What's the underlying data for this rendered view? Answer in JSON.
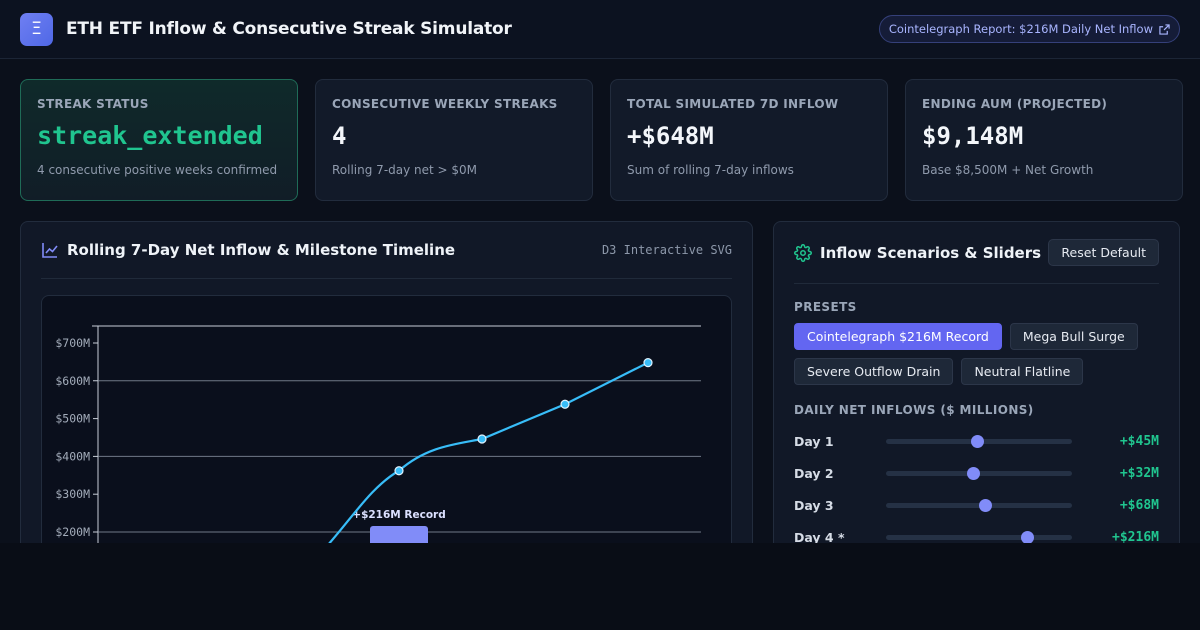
{
  "app": {
    "title": "ETH ETF Inflow & Consecutive Streak Simulator",
    "logo_glyph": "Ξ",
    "report_link": "Cointelegraph Report: $216M Daily Net Inflow",
    "report_icon": "external-link-icon"
  },
  "cards": [
    {
      "label": "STREAK STATUS",
      "value": "streak_extended",
      "sub": "4 consecutive positive weeks confirmed"
    },
    {
      "label": "CONSECUTIVE WEEKLY STREAKS",
      "value": "4",
      "sub": "Rolling 7-day net > $0M"
    },
    {
      "label": "TOTAL SIMULATED 7D INFLOW",
      "value": "+$648M",
      "sub": "Sum of rolling 7-day inflows"
    },
    {
      "label": "ENDING AUM (PROJECTED)",
      "value": "$9,148M",
      "sub": "Base $8,500M + Net Growth"
    }
  ],
  "chart_panel": {
    "title": "Rolling 7-Day Net Inflow & Milestone Timeline",
    "tag": "D3 Interactive SVG",
    "icon": "line-chart-icon"
  },
  "chart_data": {
    "type": "line",
    "y_ticks": [
      "$200M",
      "$300M",
      "$400M",
      "$500M",
      "$600M",
      "$700M"
    ],
    "ylim_visible": [
      200,
      750
    ],
    "series": [
      {
        "values": [
          362,
          446,
          538,
          648
        ]
      }
    ],
    "bar_annotation": {
      "label": "+$216M Record",
      "value": 216
    },
    "grid": true
  },
  "controls": {
    "title": "Inflow Scenarios & Sliders",
    "icon": "gear-icon",
    "reset_label": "Reset Default",
    "presets_label": "PRESETS",
    "presets": [
      "Cointelegraph $216M Record",
      "Mega Bull Surge",
      "Severe Outflow Drain",
      "Neutral Flatline"
    ],
    "active_preset": 0,
    "daily_label": "DAILY NET INFLOWS ($ MILLIONS)",
    "days": [
      {
        "label": "Day 1",
        "value": "+$45M",
        "level": 0.49
      },
      {
        "label": "Day 2",
        "value": "+$32M",
        "level": 0.47
      },
      {
        "label": "Day 3",
        "value": "+$68M",
        "level": 0.53
      },
      {
        "label": "Day 4 *",
        "value": "+$216M",
        "level": 0.76
      }
    ]
  },
  "colors": {
    "accent": "#6366f1",
    "positive": "#20c58f",
    "line": "#38bdf8"
  }
}
